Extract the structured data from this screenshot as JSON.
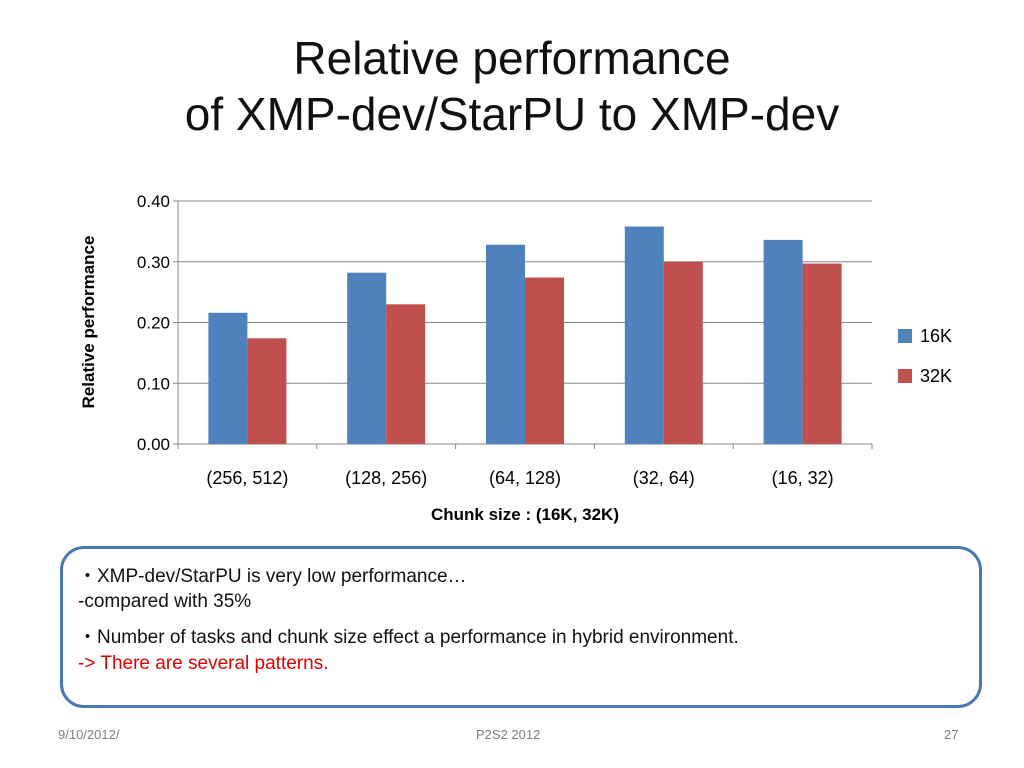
{
  "slide": {
    "title_line1": "Relative performance",
    "title_line2": "of XMP-dev/StarPU to XMP-dev"
  },
  "notes": {
    "line1": "・XMP-dev/StarPU is very low performance…",
    "line2": "   -compared with 35%",
    "line3": "・Number of tasks and chunk size effect a performance in hybrid environment.",
    "line4": "   -> There are several patterns.",
    "highlight_color": "#e00000"
  },
  "footer": {
    "date": "9/10/2012/",
    "event": "P2S2 2012",
    "page": "27"
  },
  "chart_data": {
    "type": "bar",
    "categories": [
      "(256, 512)",
      "(128, 256)",
      "(64, 128)",
      "(32, 64)",
      "(16, 32)"
    ],
    "series": [
      {
        "name": "16K",
        "values": [
          0.216,
          0.282,
          0.328,
          0.358,
          0.336
        ],
        "color": "#4f81bd"
      },
      {
        "name": "32K",
        "values": [
          0.174,
          0.23,
          0.274,
          0.3,
          0.297
        ],
        "color": "#c0504d"
      }
    ],
    "xlabel": "Chunk size : (16K, 32K)",
    "ylabel": "Relative performance",
    "ylim": [
      0,
      0.4
    ],
    "yticks": [
      "0.00",
      "0.10",
      "0.20",
      "0.30",
      "0.40"
    ],
    "grid": true,
    "legend_position": "right"
  }
}
